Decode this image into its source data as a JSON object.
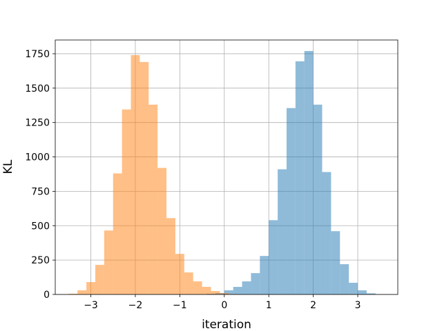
{
  "chart_data": {
    "type": "bar",
    "title": "",
    "xlabel": "iteration",
    "ylabel": "KL",
    "xlim": [
      -3.8,
      3.9
    ],
    "ylim": [
      0,
      1850
    ],
    "grid": true,
    "legend": "none",
    "xticks": [
      -3,
      -2,
      -1,
      0,
      1,
      2,
      3
    ],
    "xtick_labels": [
      "−3",
      "−2",
      "−1",
      "0",
      "1",
      "2",
      "3"
    ],
    "yticks": [
      0,
      250,
      500,
      750,
      1000,
      1250,
      1500,
      1750
    ],
    "yticks_labels": [
      "0",
      "250",
      "500",
      "750",
      "1000",
      "1250",
      "1500",
      "1750"
    ],
    "series": [
      {
        "color": "#1f77b4",
        "opacity": 0.5,
        "bin_width": 0.2,
        "bins": [
          {
            "x": -0.3,
            "count": 5
          },
          {
            "x": -0.1,
            "count": 10
          },
          {
            "x": 0.1,
            "count": 30
          },
          {
            "x": 0.3,
            "count": 55
          },
          {
            "x": 0.5,
            "count": 95
          },
          {
            "x": 0.7,
            "count": 155
          },
          {
            "x": 0.9,
            "count": 280
          },
          {
            "x": 1.1,
            "count": 540
          },
          {
            "x": 1.3,
            "count": 910
          },
          {
            "x": 1.5,
            "count": 1355
          },
          {
            "x": 1.7,
            "count": 1695
          },
          {
            "x": 1.9,
            "count": 1770
          },
          {
            "x": 2.1,
            "count": 1380
          },
          {
            "x": 2.3,
            "count": 890
          },
          {
            "x": 2.5,
            "count": 460
          },
          {
            "x": 2.7,
            "count": 220
          },
          {
            "x": 2.9,
            "count": 85
          },
          {
            "x": 3.1,
            "count": 30
          },
          {
            "x": 3.3,
            "count": 8
          }
        ]
      },
      {
        "color": "#ff7f0e",
        "opacity": 0.5,
        "bin_width": 0.2,
        "bins": [
          {
            "x": -3.4,
            "count": 5
          },
          {
            "x": -3.2,
            "count": 30
          },
          {
            "x": -3.0,
            "count": 90
          },
          {
            "x": -2.8,
            "count": 215
          },
          {
            "x": -2.6,
            "count": 465
          },
          {
            "x": -2.4,
            "count": 880
          },
          {
            "x": -2.2,
            "count": 1345
          },
          {
            "x": -2.0,
            "count": 1740
          },
          {
            "x": -1.8,
            "count": 1690
          },
          {
            "x": -1.6,
            "count": 1380
          },
          {
            "x": -1.4,
            "count": 920
          },
          {
            "x": -1.2,
            "count": 555
          },
          {
            "x": -1.0,
            "count": 295
          },
          {
            "x": -0.8,
            "count": 160
          },
          {
            "x": -0.6,
            "count": 95
          },
          {
            "x": -0.4,
            "count": 55
          },
          {
            "x": -0.2,
            "count": 25
          },
          {
            "x": 0.0,
            "count": 10
          },
          {
            "x": 0.2,
            "count": 3
          }
        ]
      }
    ]
  }
}
